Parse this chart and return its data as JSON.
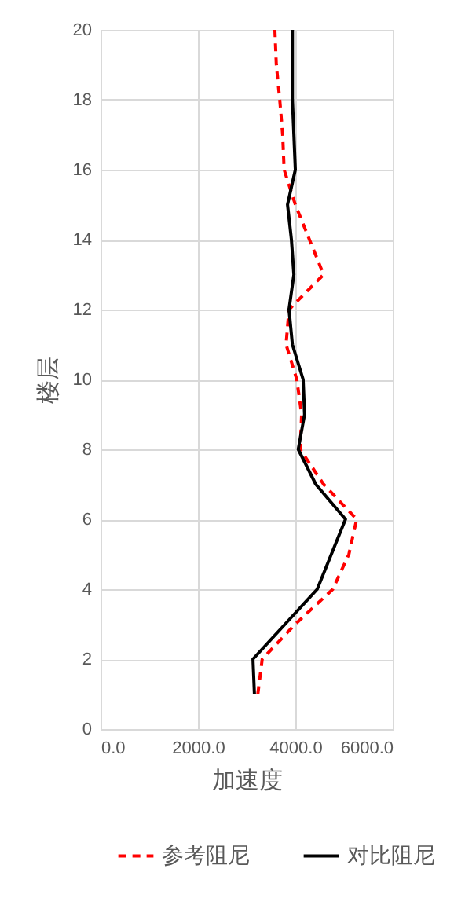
{
  "chart_data": {
    "type": "line",
    "orientation": "horizontal",
    "xlabel": "加速度",
    "ylabel": "楼层",
    "x": [
      1,
      2,
      3,
      4,
      5,
      6,
      7,
      8,
      9,
      10,
      11,
      12,
      13,
      14,
      15,
      16,
      17,
      18,
      19,
      20
    ],
    "series": [
      {
        "name": "参考阻尼",
        "color": "#ff0000",
        "line_style": "dashed",
        "values": [
          3230,
          3320,
          4000,
          4770,
          5100,
          5260,
          4580,
          4100,
          4130,
          4030,
          3810,
          3870,
          4580,
          4290,
          4000,
          3770,
          3740,
          3680,
          3610,
          3580
        ]
      },
      {
        "name": "对比阻尼",
        "color": "#000000",
        "line_style": "solid",
        "values": [
          3160,
          3130,
          3790,
          4450,
          4740,
          5030,
          4420,
          4060,
          4190,
          4160,
          3940,
          3870,
          3970,
          3920,
          3840,
          4000,
          3970,
          3940,
          3940,
          3940
        ]
      }
    ],
    "xlim": [
      0,
      6000
    ],
    "xticks": [
      {
        "value": 0,
        "label": "0.0"
      },
      {
        "value": 2000,
        "label": "2000.0"
      },
      {
        "value": 4000,
        "label": "4000.0"
      },
      {
        "value": 6000,
        "label": "6000.0"
      }
    ],
    "ylim": [
      0,
      20
    ],
    "yticks": [
      0,
      2,
      4,
      6,
      8,
      10,
      12,
      14,
      16,
      18,
      20
    ],
    "grid": true,
    "legend": "bottom",
    "marker": "none"
  }
}
